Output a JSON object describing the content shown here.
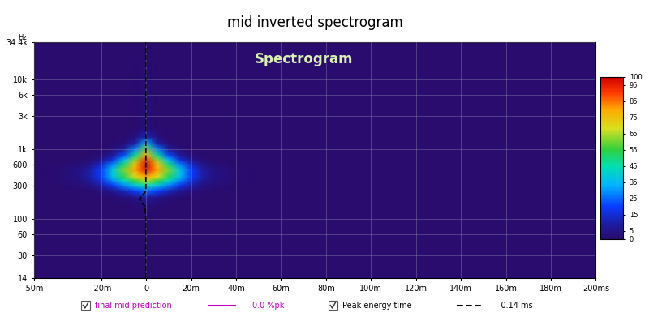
{
  "chart_data": {
    "type": "heatmap",
    "title": "mid inverted spectrogram",
    "annotation": "Spectrogram",
    "y_label": "Hz",
    "log": "y",
    "grid": true,
    "xlim": [
      -50,
      200
    ],
    "ylim": [
      14,
      34400
    ],
    "xticks": [
      {
        "value": -50,
        "label": "-50m"
      },
      {
        "value": -20,
        "label": "-20m"
      },
      0,
      {
        "value": 20,
        "label": "20m"
      },
      {
        "value": 40,
        "label": "40m"
      },
      {
        "value": 60,
        "label": "60m"
      },
      {
        "value": 80,
        "label": "80m"
      },
      {
        "value": 100,
        "label": "100m"
      },
      {
        "value": 120,
        "label": "120m"
      },
      {
        "value": 140,
        "label": "140m"
      },
      {
        "value": 160,
        "label": "160m"
      },
      {
        "value": 180,
        "label": "180m"
      },
      {
        "value": 200,
        "label": "200ms"
      }
    ],
    "yticks": [
      14,
      30,
      60,
      100,
      300,
      600,
      {
        "value": 1000,
        "label": "1k"
      },
      {
        "value": 3000,
        "label": "3k"
      },
      {
        "value": 6000,
        "label": "6k"
      },
      {
        "value": 10000,
        "label": "10k"
      },
      {
        "value": 34400,
        "label": "34.4k"
      }
    ],
    "x": [
      -50,
      -40,
      -30,
      -25,
      -20,
      -15,
      -10,
      -5,
      0,
      5,
      10,
      15,
      20,
      25,
      30,
      40,
      50,
      200
    ],
    "y": [
      14,
      100,
      150,
      200,
      250,
      300,
      350,
      400,
      500,
      600,
      700,
      800,
      1000,
      1200,
      1500,
      2000,
      34400
    ],
    "cells": [
      [
        0,
        0,
        0,
        0,
        0,
        0,
        0,
        0,
        0,
        0,
        0,
        0,
        0,
        0,
        0,
        0,
        0,
        0
      ],
      [
        0,
        0,
        0,
        0,
        0,
        0,
        0,
        0,
        0,
        0,
        0,
        0,
        0,
        0,
        0,
        0,
        0,
        0
      ],
      [
        0,
        0,
        0,
        0,
        0,
        0,
        0,
        1,
        2,
        1,
        0,
        0,
        0,
        0,
        0,
        0,
        0,
        0
      ],
      [
        0,
        0,
        0,
        0,
        0,
        1,
        2,
        5,
        8,
        5,
        2,
        1,
        0,
        0,
        0,
        0,
        0,
        0
      ],
      [
        0,
        0,
        0,
        1,
        3,
        6,
        12,
        20,
        25,
        20,
        12,
        6,
        3,
        1,
        0,
        0,
        0,
        0
      ],
      [
        0,
        0,
        2,
        4,
        10,
        18,
        28,
        38,
        45,
        38,
        28,
        18,
        10,
        4,
        2,
        0,
        0,
        0
      ],
      [
        0,
        1,
        3,
        7,
        15,
        28,
        42,
        55,
        65,
        55,
        42,
        28,
        15,
        7,
        3,
        1,
        0,
        0
      ],
      [
        0,
        1,
        4,
        10,
        20,
        36,
        52,
        68,
        80,
        68,
        52,
        36,
        20,
        10,
        4,
        1,
        0,
        0
      ],
      [
        0,
        1,
        4,
        9,
        20,
        38,
        60,
        80,
        95,
        80,
        60,
        38,
        20,
        9,
        4,
        1,
        0,
        0
      ],
      [
        0,
        0,
        2,
        5,
        13,
        28,
        50,
        75,
        97,
        75,
        50,
        28,
        13,
        5,
        2,
        0,
        0,
        0
      ],
      [
        0,
        0,
        0,
        2,
        6,
        16,
        35,
        62,
        90,
        62,
        35,
        16,
        6,
        2,
        0,
        0,
        0,
        0
      ],
      [
        0,
        0,
        0,
        0,
        2,
        8,
        22,
        48,
        80,
        48,
        22,
        8,
        2,
        0,
        0,
        0,
        0,
        0
      ],
      [
        0,
        0,
        0,
        0,
        0,
        2,
        8,
        28,
        60,
        28,
        8,
        2,
        0,
        0,
        0,
        0,
        0,
        0
      ],
      [
        0,
        0,
        0,
        0,
        0,
        0,
        2,
        10,
        35,
        10,
        2,
        0,
        0,
        0,
        0,
        0,
        0,
        0
      ],
      [
        0,
        0,
        0,
        0,
        0,
        0,
        0,
        3,
        12,
        3,
        0,
        0,
        0,
        0,
        0,
        0,
        0,
        0
      ],
      [
        0,
        0,
        0,
        0,
        0,
        0,
        0,
        0,
        3,
        0,
        0,
        0,
        0,
        0,
        0,
        0,
        0,
        0
      ],
      [
        0,
        0,
        0,
        0,
        0,
        0,
        0,
        0,
        0,
        0,
        0,
        0,
        0,
        0,
        0,
        0,
        0,
        0
      ]
    ],
    "colorbar_range": [
      0,
      100
    ],
    "colorbar_ticks": [
      0,
      5,
      15,
      25,
      35,
      45,
      55,
      65,
      75,
      85,
      95,
      100
    ],
    "series": [
      {
        "name": "final mid prediction",
        "color": "#c000c0",
        "line_style": "solid",
        "readout": "0.0 %pk"
      },
      {
        "name": "Peak energy time",
        "color": "#000000",
        "line_style": "dashed",
        "readout": "-0.14 ms",
        "frequencies": [
          14,
          100,
          150,
          170,
          190,
          210,
          240,
          270,
          34400
        ],
        "times": [
          -0.14,
          -0.14,
          -0.5,
          -2.0,
          -3.0,
          -2.0,
          -0.5,
          -0.14,
          -0.14
        ]
      }
    ]
  }
}
